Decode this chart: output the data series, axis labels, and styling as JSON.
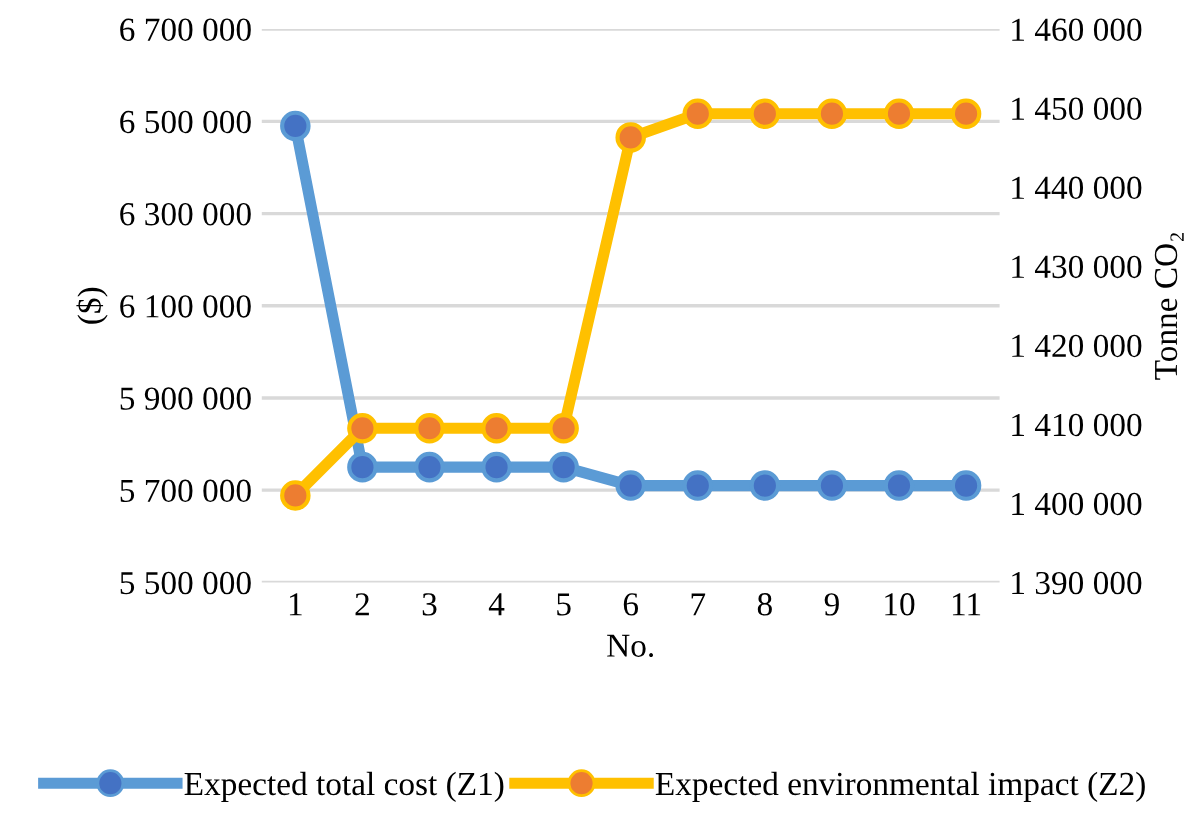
{
  "chart_data": {
    "type": "line",
    "xlabel": "No.",
    "ylabel": "($)",
    "y2label": "Tonne CO₂",
    "categories": [
      "1",
      "2",
      "3",
      "4",
      "5",
      "6",
      "7",
      "8",
      "9",
      "10",
      "11"
    ],
    "series": [
      {
        "name": "Expected total cost (Z1)",
        "color": "#5b9bd5",
        "colors": [
          "#4472c4",
          "#4472c4",
          "#4472c4",
          "#4472c4",
          "#4472c4",
          "#4472c4",
          "#4472c4",
          "#4472c4",
          "#4472c4",
          "#4472c4",
          "#4472c4"
        ],
        "values": [
          6490000,
          5750000,
          5750000,
          5750000,
          5750000,
          5710000,
          5710000,
          5710000,
          5710000,
          5710000,
          5710000
        ]
      },
      {
        "name": "Expected environmental impact (Z2)",
        "axis": "y2",
        "color": "#ffc000",
        "colors": [
          "#ed7d31",
          "#ed7d31",
          "#ed7d31",
          "#ed7d31",
          "#ed7d31",
          "#ed7d31",
          "#ed7d31",
          "#ed7d31",
          "#ed7d31",
          "#ed7d31",
          "#ed7d31"
        ],
        "values": [
          1401000,
          1409500,
          1409500,
          1409500,
          1409500,
          1446300,
          1449300,
          1449300,
          1449300,
          1449300,
          1449300
        ]
      }
    ],
    "ylim": [
      5500000,
      6700000
    ],
    "yticks": [
      {
        "value": 5500000,
        "label": "5 500 000"
      },
      {
        "value": 5700000,
        "label": "5 700 000"
      },
      {
        "value": 5900000,
        "label": "5 900 000"
      },
      {
        "value": 6100000,
        "label": "6 100 000"
      },
      {
        "value": 6300000,
        "label": "6 300 000"
      },
      {
        "value": 6500000,
        "label": "6 500 000"
      },
      {
        "value": 6700000,
        "label": "6 700 000"
      }
    ],
    "y2lim": [
      1390000,
      1460000
    ],
    "y2ticks": [
      {
        "value": 1390000,
        "label": "1 390 000"
      },
      {
        "value": 1400000,
        "label": "1 400 000"
      },
      {
        "value": 1410000,
        "label": "1 410 000"
      },
      {
        "value": 1420000,
        "label": "1 420 000"
      },
      {
        "value": 1430000,
        "label": "1 430 000"
      },
      {
        "value": 1440000,
        "label": "1 440 000"
      },
      {
        "value": 1450000,
        "label": "1 450 000"
      },
      {
        "value": 1460000,
        "label": "1 460 000"
      }
    ],
    "grid": "y",
    "legend": "bottom",
    "marker": "circle",
    "line_style": "solid"
  }
}
